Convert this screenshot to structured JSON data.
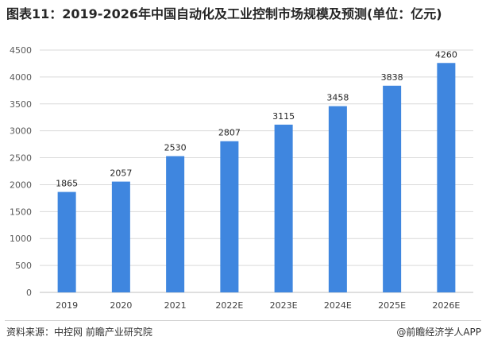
{
  "chart_data": {
    "type": "bar",
    "title": "图表11：2019-2026年中国自动化及工业控制市场规模及预测(单位：亿元)",
    "xlabel": "",
    "ylabel": "",
    "categories": [
      "2019",
      "2020",
      "2021",
      "2022E",
      "2023E",
      "2024E",
      "2025E",
      "2026E"
    ],
    "values": [
      1865,
      2057,
      2530,
      2807,
      3115,
      3458,
      3838,
      4260
    ],
    "ylim": [
      0,
      4500
    ],
    "yticks": [
      0,
      500,
      1000,
      1500,
      2000,
      2500,
      3000,
      3500,
      4000,
      4500
    ],
    "grid": true,
    "legend": "none",
    "data_labels": true,
    "colors": {
      "bar": "#3f86df",
      "grid": "#d9d9d9",
      "axis": "#bfbfbf"
    }
  },
  "footer": {
    "source": "资料来源：中控网 前瞻产业研究院",
    "credit": "@前瞻经济学人APP"
  }
}
